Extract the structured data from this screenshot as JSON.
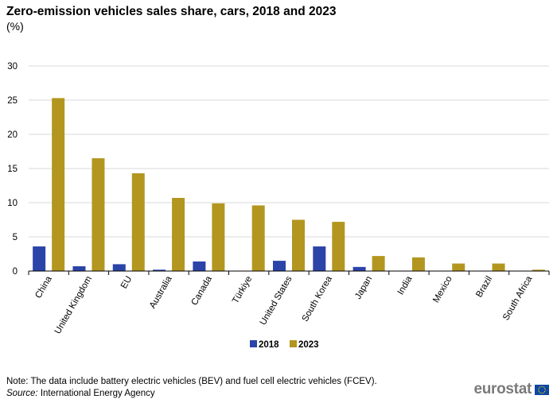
{
  "chart_data": {
    "type": "bar",
    "title": "Zero-emission vehicles sales share, cars, 2018 and 2023",
    "subtitle": "(%)",
    "xlabel": "",
    "ylabel": "",
    "ylim": [
      0,
      30
    ],
    "yticks": [
      0,
      5,
      10,
      15,
      20,
      25,
      30
    ],
    "grid": true,
    "legend_position": "bottom",
    "categories": [
      "China",
      "United Kingdom",
      "EU",
      "Australia",
      "Canada",
      "Türkiye",
      "United States",
      "South Korea",
      "Japan",
      "India",
      "Mexico",
      "Brazil",
      "South Africa"
    ],
    "series": [
      {
        "name": "2018",
        "color": "#2b44a8",
        "values": [
          3.6,
          0.7,
          1.0,
          0.2,
          1.4,
          0.0,
          1.5,
          3.6,
          0.6,
          0.0,
          0.0,
          0.0,
          0.0
        ]
      },
      {
        "name": "2023",
        "color": "#b3961f",
        "values": [
          25.3,
          16.5,
          14.3,
          10.7,
          9.9,
          9.6,
          7.5,
          7.2,
          2.2,
          2.0,
          1.1,
          1.1,
          0.2
        ]
      }
    ]
  },
  "footer": {
    "note": "Note: The data include battery electric vehicles (BEV) and fuel cell electric vehicles (FCEV).",
    "source_label": "Source:",
    "source_text": " International  Energy Agency"
  },
  "logo": {
    "text": "eurostat",
    "flag_color": "#0e47a1",
    "star_color": "#ffdd00"
  }
}
